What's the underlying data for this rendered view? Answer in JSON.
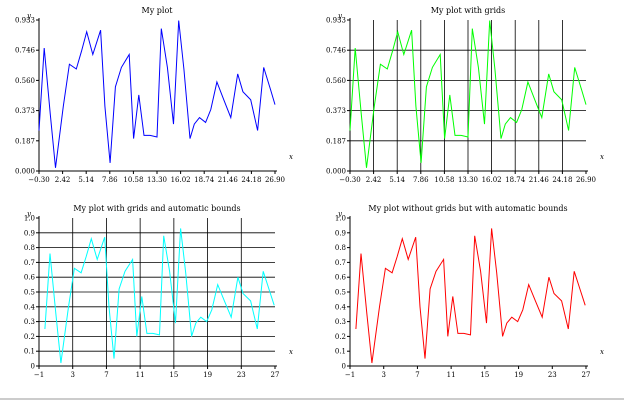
{
  "chart_data": [
    {
      "type": "line",
      "title": "My plot",
      "xlabel": "x",
      "ylabel": "y",
      "grid": false,
      "xlim": [
        -0.3,
        26.9
      ],
      "ylim": [
        0,
        0.933
      ],
      "xticks": [
        "−0.30",
        "2.42",
        "5.14",
        "7.86",
        "10.58",
        "13.30",
        "16.02",
        "18.74",
        "21.46",
        "24.18",
        "26.90"
      ],
      "yticks": [
        "0.000",
        "0.187",
        "0.373",
        "0.560",
        "0.746",
        "0.933"
      ],
      "series": [
        {
          "color": "#0000ff",
          "x": [
            -0.3,
            0.3,
            1,
            1.6,
            2.5,
            3.2,
            4,
            4.6,
            5.2,
            5.9,
            6.8,
            7.3,
            7.9,
            8.5,
            9.2,
            10.1,
            10.6,
            11.2,
            11.8,
            12.5,
            13.3,
            13.8,
            14.5,
            15.2,
            15.8,
            16.4,
            17.1,
            17.6,
            18.2,
            18.9,
            19.5,
            20.2,
            21,
            21.8,
            22.6,
            23.2,
            24.1,
            24.9,
            25.6,
            26.4,
            26.9
          ],
          "y": [
            0.25,
            0.76,
            0.35,
            0.02,
            0.4,
            0.66,
            0.63,
            0.74,
            0.86,
            0.72,
            0.87,
            0.4,
            0.05,
            0.52,
            0.64,
            0.72,
            0.2,
            0.47,
            0.22,
            0.22,
            0.21,
            0.88,
            0.64,
            0.29,
            0.93,
            0.63,
            0.2,
            0.29,
            0.33,
            0.3,
            0.38,
            0.55,
            0.44,
            0.33,
            0.6,
            0.49,
            0.44,
            0.25,
            0.64,
            0.5,
            0.41
          ]
        }
      ]
    },
    {
      "type": "line",
      "title": "My plot with grids",
      "xlabel": "x",
      "ylabel": "y",
      "grid": true,
      "xlim": [
        -0.3,
        26.9
      ],
      "ylim": [
        0,
        0.933
      ],
      "xticks": [
        "−0.30",
        "2.42",
        "5.14",
        "7.86",
        "10.58",
        "13.30",
        "16.02",
        "18.74",
        "21.46",
        "24.18",
        "26.90"
      ],
      "yticks": [
        "0.000",
        "0.187",
        "0.373",
        "0.560",
        "0.746",
        "0.933"
      ],
      "series": [
        {
          "color": "#00ff00",
          "x": [
            -0.3,
            0.3,
            1,
            1.6,
            2.5,
            3.2,
            4,
            4.6,
            5.2,
            5.9,
            6.8,
            7.3,
            7.9,
            8.5,
            9.2,
            10.1,
            10.6,
            11.2,
            11.8,
            12.5,
            13.3,
            13.8,
            14.5,
            15.2,
            15.8,
            16.4,
            17.1,
            17.6,
            18.2,
            18.9,
            19.5,
            20.2,
            21,
            21.8,
            22.6,
            23.2,
            24.1,
            24.9,
            25.6,
            26.4,
            26.9
          ],
          "y": [
            0.25,
            0.76,
            0.35,
            0.02,
            0.4,
            0.66,
            0.63,
            0.74,
            0.86,
            0.72,
            0.87,
            0.4,
            0.05,
            0.52,
            0.64,
            0.72,
            0.2,
            0.47,
            0.22,
            0.22,
            0.21,
            0.88,
            0.64,
            0.29,
            0.93,
            0.63,
            0.2,
            0.29,
            0.33,
            0.3,
            0.38,
            0.55,
            0.44,
            0.33,
            0.6,
            0.49,
            0.44,
            0.25,
            0.64,
            0.5,
            0.41
          ]
        }
      ]
    },
    {
      "type": "line",
      "title": "My plot with grids and automatic bounds",
      "xlabel": "x",
      "ylabel": "y",
      "grid": true,
      "xlim": [
        -1,
        27
      ],
      "ylim": [
        0,
        1
      ],
      "xticks": [
        "−1",
        "3",
        "7",
        "11",
        "15",
        "19",
        "23",
        "27"
      ],
      "yticks": [
        "0",
        "0.1",
        "0.2",
        "0.3",
        "0.4",
        "0.5",
        "0.6",
        "0.7",
        "0.8",
        "0.9",
        "1.0"
      ],
      "series": [
        {
          "color": "#00ffff",
          "x": [
            -0.3,
            0.3,
            1,
            1.6,
            2.5,
            3.2,
            4,
            4.6,
            5.2,
            5.9,
            6.8,
            7.3,
            7.9,
            8.5,
            9.2,
            10.1,
            10.6,
            11.2,
            11.8,
            12.5,
            13.3,
            13.8,
            14.5,
            15.2,
            15.8,
            16.4,
            17.1,
            17.6,
            18.2,
            18.9,
            19.5,
            20.2,
            21,
            21.8,
            22.6,
            23.2,
            24.1,
            24.9,
            25.6,
            26.4,
            26.9
          ],
          "y": [
            0.25,
            0.76,
            0.35,
            0.02,
            0.4,
            0.66,
            0.63,
            0.74,
            0.86,
            0.72,
            0.87,
            0.4,
            0.05,
            0.52,
            0.64,
            0.72,
            0.2,
            0.47,
            0.22,
            0.22,
            0.21,
            0.88,
            0.64,
            0.29,
            0.93,
            0.63,
            0.2,
            0.29,
            0.33,
            0.3,
            0.38,
            0.55,
            0.44,
            0.33,
            0.6,
            0.49,
            0.44,
            0.25,
            0.64,
            0.5,
            0.41
          ]
        }
      ]
    },
    {
      "type": "line",
      "title": "My plot without grids but with automatic bounds",
      "xlabel": "x",
      "ylabel": "y",
      "grid": false,
      "xlim": [
        -1,
        27
      ],
      "ylim": [
        0,
        1
      ],
      "xticks": [
        "−1",
        "3",
        "7",
        "11",
        "15",
        "19",
        "23",
        "27"
      ],
      "yticks": [
        "0",
        "0.1",
        "0.2",
        "0.3",
        "0.4",
        "0.5",
        "0.6",
        "0.7",
        "0.8",
        "0.9",
        "1.0"
      ],
      "series": [
        {
          "color": "#ff0000",
          "x": [
            -0.3,
            0.3,
            1,
            1.6,
            2.5,
            3.2,
            4,
            4.6,
            5.2,
            5.9,
            6.8,
            7.3,
            7.9,
            8.5,
            9.2,
            10.1,
            10.6,
            11.2,
            11.8,
            12.5,
            13.3,
            13.8,
            14.5,
            15.2,
            15.8,
            16.4,
            17.1,
            17.6,
            18.2,
            18.9,
            19.5,
            20.2,
            21,
            21.8,
            22.6,
            23.2,
            24.1,
            24.9,
            25.6,
            26.4,
            26.9
          ],
          "y": [
            0.25,
            0.76,
            0.35,
            0.02,
            0.4,
            0.66,
            0.63,
            0.74,
            0.86,
            0.72,
            0.87,
            0.4,
            0.05,
            0.52,
            0.64,
            0.72,
            0.2,
            0.47,
            0.22,
            0.22,
            0.21,
            0.88,
            0.64,
            0.29,
            0.93,
            0.63,
            0.2,
            0.29,
            0.33,
            0.3,
            0.38,
            0.55,
            0.44,
            0.33,
            0.6,
            0.49,
            0.44,
            0.25,
            0.64,
            0.5,
            0.41
          ]
        }
      ]
    }
  ]
}
